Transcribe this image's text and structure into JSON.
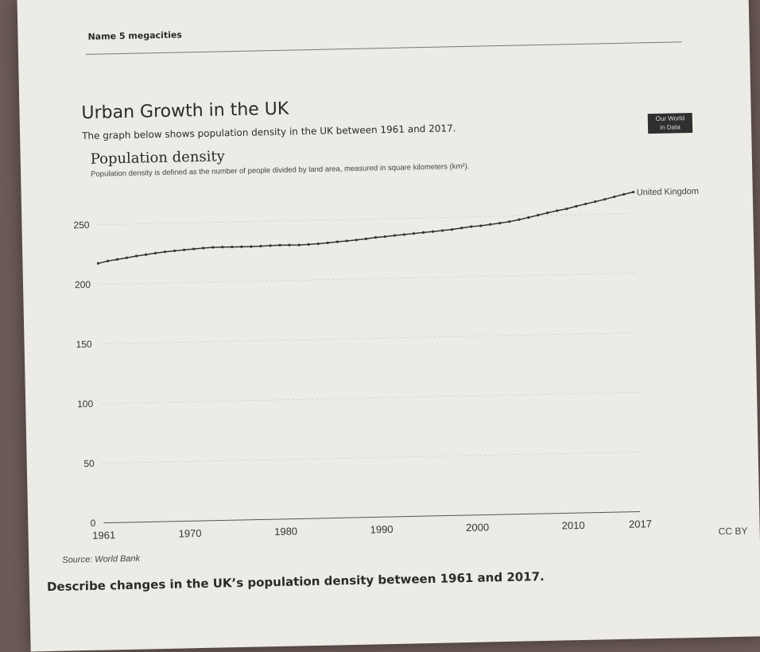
{
  "worksheet": {
    "name_label": "Name 5 megacities",
    "title": "Urban Growth in the UK",
    "intro": "The graph below shows population density in the UK between 1961 and 2017.",
    "question": "Describe changes in the UK’s population density between 1961 and 2017."
  },
  "logo": {
    "line1": "Our World",
    "line2": "in Data"
  },
  "chart_data": {
    "type": "line",
    "title": "Population density",
    "subtitle": "Population density is defined as the number of people divided by land area, measured in square kilometers (km²).",
    "source": "Source: World Bank",
    "license": "CC BY",
    "x_ticks": [
      "1961",
      "1970",
      "1980",
      "1990",
      "2000",
      "2010",
      "2017"
    ],
    "y_ticks": [
      "0",
      "50",
      "100",
      "150",
      "200",
      "250"
    ],
    "xlim": [
      1961,
      2017
    ],
    "ylim": [
      0,
      250
    ],
    "grid": "horizontal dashed",
    "series": [
      {
        "name": "United Kingdom",
        "color": "#333333",
        "x_start": 1961,
        "values": [
          217.6,
          219.4,
          220.6,
          221.8,
          223.1,
          224.1,
          225.2,
          226.1,
          226.8,
          227.4,
          228.0,
          228.6,
          229.0,
          229.1,
          229.0,
          229.0,
          229.0,
          229.2,
          229.5,
          229.7,
          229.6,
          229.5,
          229.8,
          230.2,
          230.8,
          231.5,
          232.1,
          232.7,
          233.5,
          234.5,
          235.0,
          235.8,
          236.4,
          237.1,
          237.8,
          238.4,
          239.1,
          239.8,
          240.9,
          241.9,
          242.4,
          243.4,
          244.3,
          245.4,
          246.9,
          248.5,
          250.3,
          252.1,
          253.7,
          255.1,
          257.1,
          258.9,
          260.6,
          262.4,
          264.4,
          266.3,
          268.0
        ]
      }
    ]
  }
}
